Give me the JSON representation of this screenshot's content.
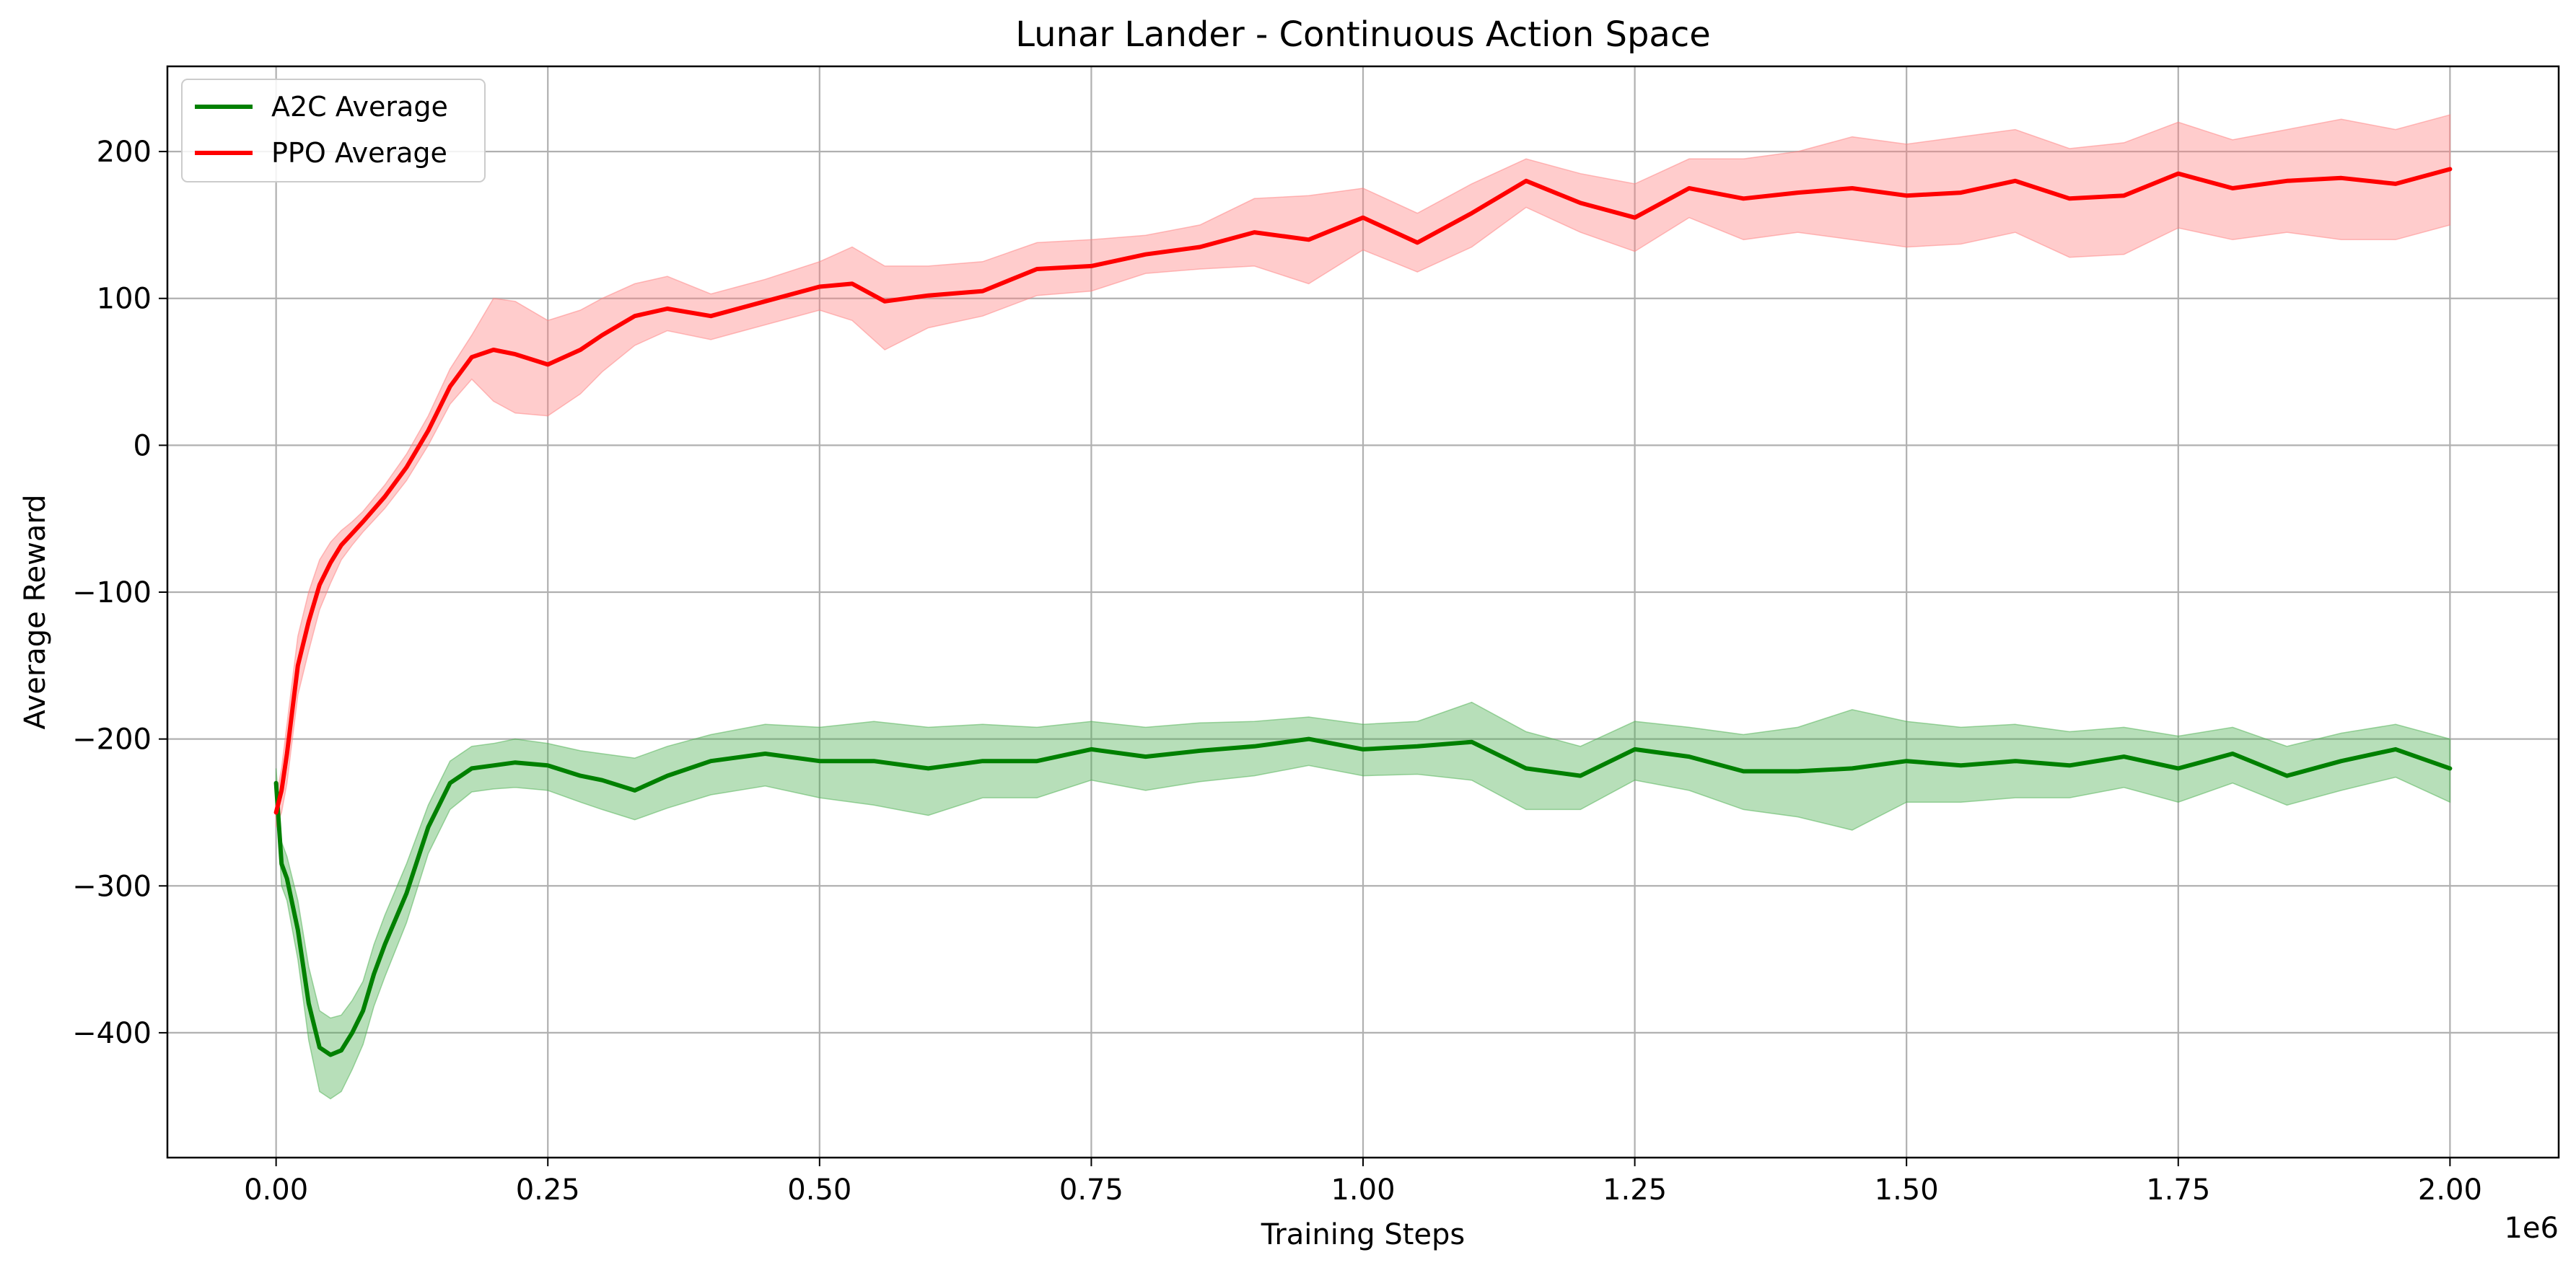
{
  "chart_data": {
    "type": "line",
    "title": "Lunar Lander - Continuous Action Space",
    "xlabel": "Training Steps",
    "ylabel": "Average Reward",
    "x_offset_label": "1e6",
    "xlim": [
      -0.1,
      2.1
    ],
    "ylim": [
      -485,
      258
    ],
    "xticks": [
      0.0,
      0.25,
      0.5,
      0.75,
      1.0,
      1.25,
      1.5,
      1.75,
      2.0
    ],
    "xtick_labels": [
      "0.00",
      "0.25",
      "0.50",
      "0.75",
      "1.00",
      "1.25",
      "1.50",
      "1.75",
      "2.00"
    ],
    "yticks": [
      -400,
      -300,
      -200,
      -100,
      0,
      100,
      200
    ],
    "ytick_labels": [
      "−400",
      "−300",
      "−200",
      "−100",
      "0",
      "100",
      "200"
    ],
    "grid": true,
    "legend_position": "upper-left",
    "series": [
      {
        "name": "A2C Average",
        "color": "#008000",
        "band_color": "#4caf50",
        "x": [
          0.0,
          0.005,
          0.01,
          0.02,
          0.03,
          0.04,
          0.05,
          0.06,
          0.07,
          0.08,
          0.09,
          0.1,
          0.12,
          0.14,
          0.16,
          0.18,
          0.2,
          0.22,
          0.25,
          0.28,
          0.3,
          0.33,
          0.36,
          0.4,
          0.45,
          0.5,
          0.55,
          0.6,
          0.65,
          0.7,
          0.75,
          0.8,
          0.85,
          0.9,
          0.95,
          1.0,
          1.05,
          1.1,
          1.15,
          1.2,
          1.25,
          1.3,
          1.35,
          1.4,
          1.45,
          1.5,
          1.55,
          1.6,
          1.65,
          1.7,
          1.75,
          1.8,
          1.85,
          1.9,
          1.95,
          2.0
        ],
        "y": [
          -230,
          -285,
          -295,
          -330,
          -380,
          -410,
          -415,
          -412,
          -400,
          -385,
          -360,
          -340,
          -305,
          -260,
          -230,
          -220,
          -218,
          -216,
          -218,
          -225,
          -228,
          -235,
          -225,
          -215,
          -210,
          -215,
          -215,
          -220,
          -215,
          -215,
          -207,
          -212,
          -208,
          -205,
          -200,
          -207,
          -205,
          -202,
          -220,
          -225,
          -207,
          -212,
          -222,
          -222,
          -220,
          -215,
          -218,
          -215,
          -218,
          -212,
          -220,
          -210,
          -225,
          -215,
          -207,
          -220
        ],
        "upper": [
          -220,
          -270,
          -280,
          -310,
          -355,
          -385,
          -390,
          -388,
          -378,
          -365,
          -340,
          -320,
          -285,
          -245,
          -215,
          -205,
          -203,
          -200,
          -203,
          -208,
          -210,
          -213,
          -205,
          -197,
          -190,
          -192,
          -188,
          -192,
          -190,
          -192,
          -188,
          -192,
          -189,
          -188,
          -185,
          -190,
          -188,
          -175,
          -195,
          -205,
          -188,
          -192,
          -197,
          -192,
          -180,
          -188,
          -192,
          -190,
          -195,
          -192,
          -198,
          -192,
          -205,
          -196,
          -190,
          -200
        ],
        "lower": [
          -240,
          -300,
          -310,
          -350,
          -405,
          -440,
          -445,
          -440,
          -425,
          -408,
          -382,
          -362,
          -325,
          -278,
          -248,
          -236,
          -234,
          -233,
          -235,
          -243,
          -248,
          -255,
          -247,
          -238,
          -232,
          -240,
          -245,
          -252,
          -240,
          -240,
          -228,
          -235,
          -229,
          -225,
          -218,
          -225,
          -224,
          -228,
          -248,
          -248,
          -228,
          -235,
          -248,
          -253,
          -262,
          -243,
          -243,
          -240,
          -240,
          -233,
          -243,
          -230,
          -245,
          -235,
          -226,
          -243
        ]
      },
      {
        "name": "PPO Average",
        "color": "#ff0000",
        "band_color": "#ff8080",
        "x": [
          0.0,
          0.005,
          0.01,
          0.015,
          0.02,
          0.03,
          0.04,
          0.05,
          0.06,
          0.07,
          0.08,
          0.1,
          0.12,
          0.14,
          0.16,
          0.18,
          0.2,
          0.22,
          0.25,
          0.28,
          0.3,
          0.33,
          0.36,
          0.4,
          0.45,
          0.5,
          0.53,
          0.56,
          0.6,
          0.65,
          0.7,
          0.75,
          0.8,
          0.85,
          0.9,
          0.95,
          1.0,
          1.05,
          1.1,
          1.15,
          1.2,
          1.25,
          1.3,
          1.35,
          1.4,
          1.45,
          1.5,
          1.55,
          1.6,
          1.65,
          1.7,
          1.75,
          1.8,
          1.85,
          1.9,
          1.95,
          2.0
        ],
        "y": [
          -250,
          -235,
          -210,
          -180,
          -150,
          -120,
          -95,
          -80,
          -68,
          -60,
          -52,
          -35,
          -15,
          10,
          40,
          60,
          65,
          62,
          55,
          65,
          75,
          88,
          93,
          88,
          98,
          108,
          110,
          98,
          102,
          105,
          120,
          122,
          130,
          135,
          145,
          140,
          155,
          138,
          158,
          180,
          165,
          155,
          175,
          168,
          172,
          175,
          170,
          172,
          180,
          168,
          170,
          185,
          175,
          180,
          182,
          178,
          188
        ],
        "upper": [
          -240,
          -220,
          -190,
          -160,
          -130,
          -100,
          -78,
          -66,
          -58,
          -52,
          -45,
          -27,
          -6,
          20,
          52,
          75,
          100,
          98,
          85,
          92,
          100,
          110,
          115,
          103,
          113,
          125,
          135,
          122,
          122,
          125,
          138,
          140,
          143,
          150,
          168,
          170,
          175,
          158,
          178,
          195,
          185,
          178,
          195,
          195,
          200,
          210,
          205,
          210,
          215,
          202,
          206,
          220,
          208,
          215,
          222,
          215,
          225
        ],
        "lower": [
          -260,
          -250,
          -230,
          -200,
          -170,
          -140,
          -112,
          -94,
          -78,
          -68,
          -59,
          -43,
          -24,
          0,
          28,
          45,
          30,
          22,
          20,
          35,
          50,
          68,
          78,
          72,
          82,
          92,
          85,
          65,
          80,
          88,
          102,
          105,
          117,
          120,
          122,
          110,
          133,
          118,
          135,
          162,
          145,
          132,
          155,
          140,
          145,
          140,
          135,
          137,
          145,
          128,
          130,
          148,
          140,
          145,
          140,
          140,
          150
        ]
      }
    ]
  }
}
